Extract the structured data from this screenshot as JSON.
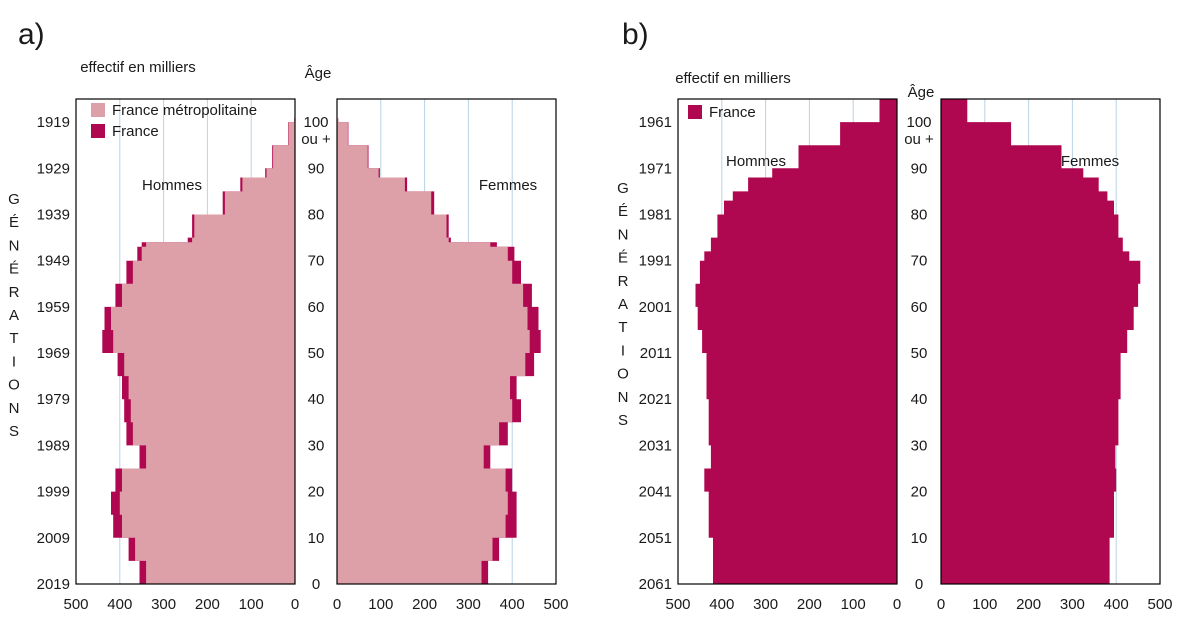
{
  "chart_data": [
    {
      "panel_label": "a)",
      "type": "area",
      "title": "",
      "unit_label": "effectif en milliers",
      "age_axis_label": "Âge",
      "age_top_label": "ou +",
      "vertical_label": "GÉNÉRATIONS",
      "male_label": "Hommes",
      "female_label": "Femmes",
      "x_ticks_left": [
        "500",
        "400",
        "300",
        "200",
        "100",
        "0"
      ],
      "x_ticks_right": [
        "0",
        "100",
        "200",
        "300",
        "400",
        "500"
      ],
      "xlim": [
        0,
        500
      ],
      "age_ticks": [
        "0",
        "10",
        "20",
        "30",
        "40",
        "50",
        "60",
        "70",
        "80",
        "90",
        "100"
      ],
      "generation_ticks": [
        "2019",
        "2009",
        "1999",
        "1989",
        "1979",
        "1969",
        "1959",
        "1949",
        "1939",
        "1929",
        "1919"
      ],
      "ylim": [
        0,
        105
      ],
      "grid": true,
      "legend_position": "top-left",
      "colors": {
        "France métropolitaine": "#dea0a8",
        "France": "#b00850"
      },
      "series": [
        {
          "name": "France métropolitaine",
          "ages": [
            0,
            5,
            10,
            15,
            20,
            25,
            30,
            35,
            40,
            45,
            50,
            55,
            60,
            65,
            70,
            73,
            74,
            75,
            80,
            85,
            88,
            90,
            95,
            100
          ],
          "male": [
            340,
            365,
            395,
            400,
            395,
            340,
            370,
            375,
            380,
            390,
            415,
            420,
            395,
            370,
            350,
            340,
            235,
            230,
            160,
            120,
            65,
            50,
            15,
            2
          ],
          "female": [
            330,
            355,
            385,
            390,
            385,
            335,
            370,
            400,
            395,
            430,
            440,
            435,
            425,
            400,
            390,
            350,
            255,
            250,
            215,
            155,
            95,
            70,
            25,
            3
          ]
        },
        {
          "name": "France",
          "ages": [
            0,
            5,
            10,
            15,
            20,
            25,
            30,
            35,
            40,
            45,
            50,
            55,
            60,
            65,
            70,
            73,
            74,
            75,
            80,
            85,
            88,
            90,
            95,
            100
          ],
          "male": [
            355,
            380,
            415,
            420,
            410,
            355,
            385,
            390,
            395,
            405,
            440,
            435,
            410,
            385,
            360,
            350,
            245,
            235,
            165,
            125,
            68,
            52,
            16,
            2
          ],
          "female": [
            345,
            370,
            410,
            410,
            400,
            350,
            390,
            420,
            410,
            450,
            465,
            460,
            445,
            420,
            405,
            365,
            260,
            255,
            222,
            160,
            98,
            72,
            26,
            3
          ]
        }
      ]
    },
    {
      "panel_label": "b)",
      "type": "area",
      "title": "",
      "unit_label": "effectif en milliers",
      "age_axis_label": "Âge",
      "age_top_label": "ou +",
      "vertical_label": "GÉNÉRATIONS",
      "male_label": "Hommes",
      "female_label": "Femmes",
      "x_ticks_left": [
        "500",
        "400",
        "300",
        "200",
        "100",
        "0"
      ],
      "x_ticks_right": [
        "0",
        "100",
        "200",
        "300",
        "400",
        "500"
      ],
      "xlim": [
        0,
        500
      ],
      "age_ticks": [
        "0",
        "10",
        "20",
        "30",
        "40",
        "50",
        "60",
        "70",
        "80",
        "90",
        "100"
      ],
      "generation_ticks": [
        "2061",
        "2051",
        "2041",
        "2031",
        "2021",
        "2011",
        "2001",
        "1991",
        "1981",
        "1971",
        "1961"
      ],
      "ylim": [
        0,
        105
      ],
      "grid": true,
      "legend_position": "top-left",
      "colors": {
        "France": "#b00850"
      },
      "series": [
        {
          "name": "France",
          "ages": [
            0,
            10,
            20,
            25,
            30,
            40,
            50,
            55,
            60,
            65,
            70,
            72,
            75,
            80,
            83,
            85,
            88,
            90,
            95,
            100,
            105
          ],
          "male": [
            420,
            430,
            440,
            425,
            430,
            435,
            445,
            455,
            460,
            450,
            440,
            425,
            410,
            395,
            375,
            340,
            285,
            225,
            130,
            40,
            0
          ],
          "female": [
            385,
            395,
            400,
            398,
            405,
            410,
            425,
            440,
            450,
            455,
            430,
            415,
            405,
            395,
            380,
            360,
            325,
            275,
            160,
            60,
            0
          ]
        }
      ]
    }
  ]
}
